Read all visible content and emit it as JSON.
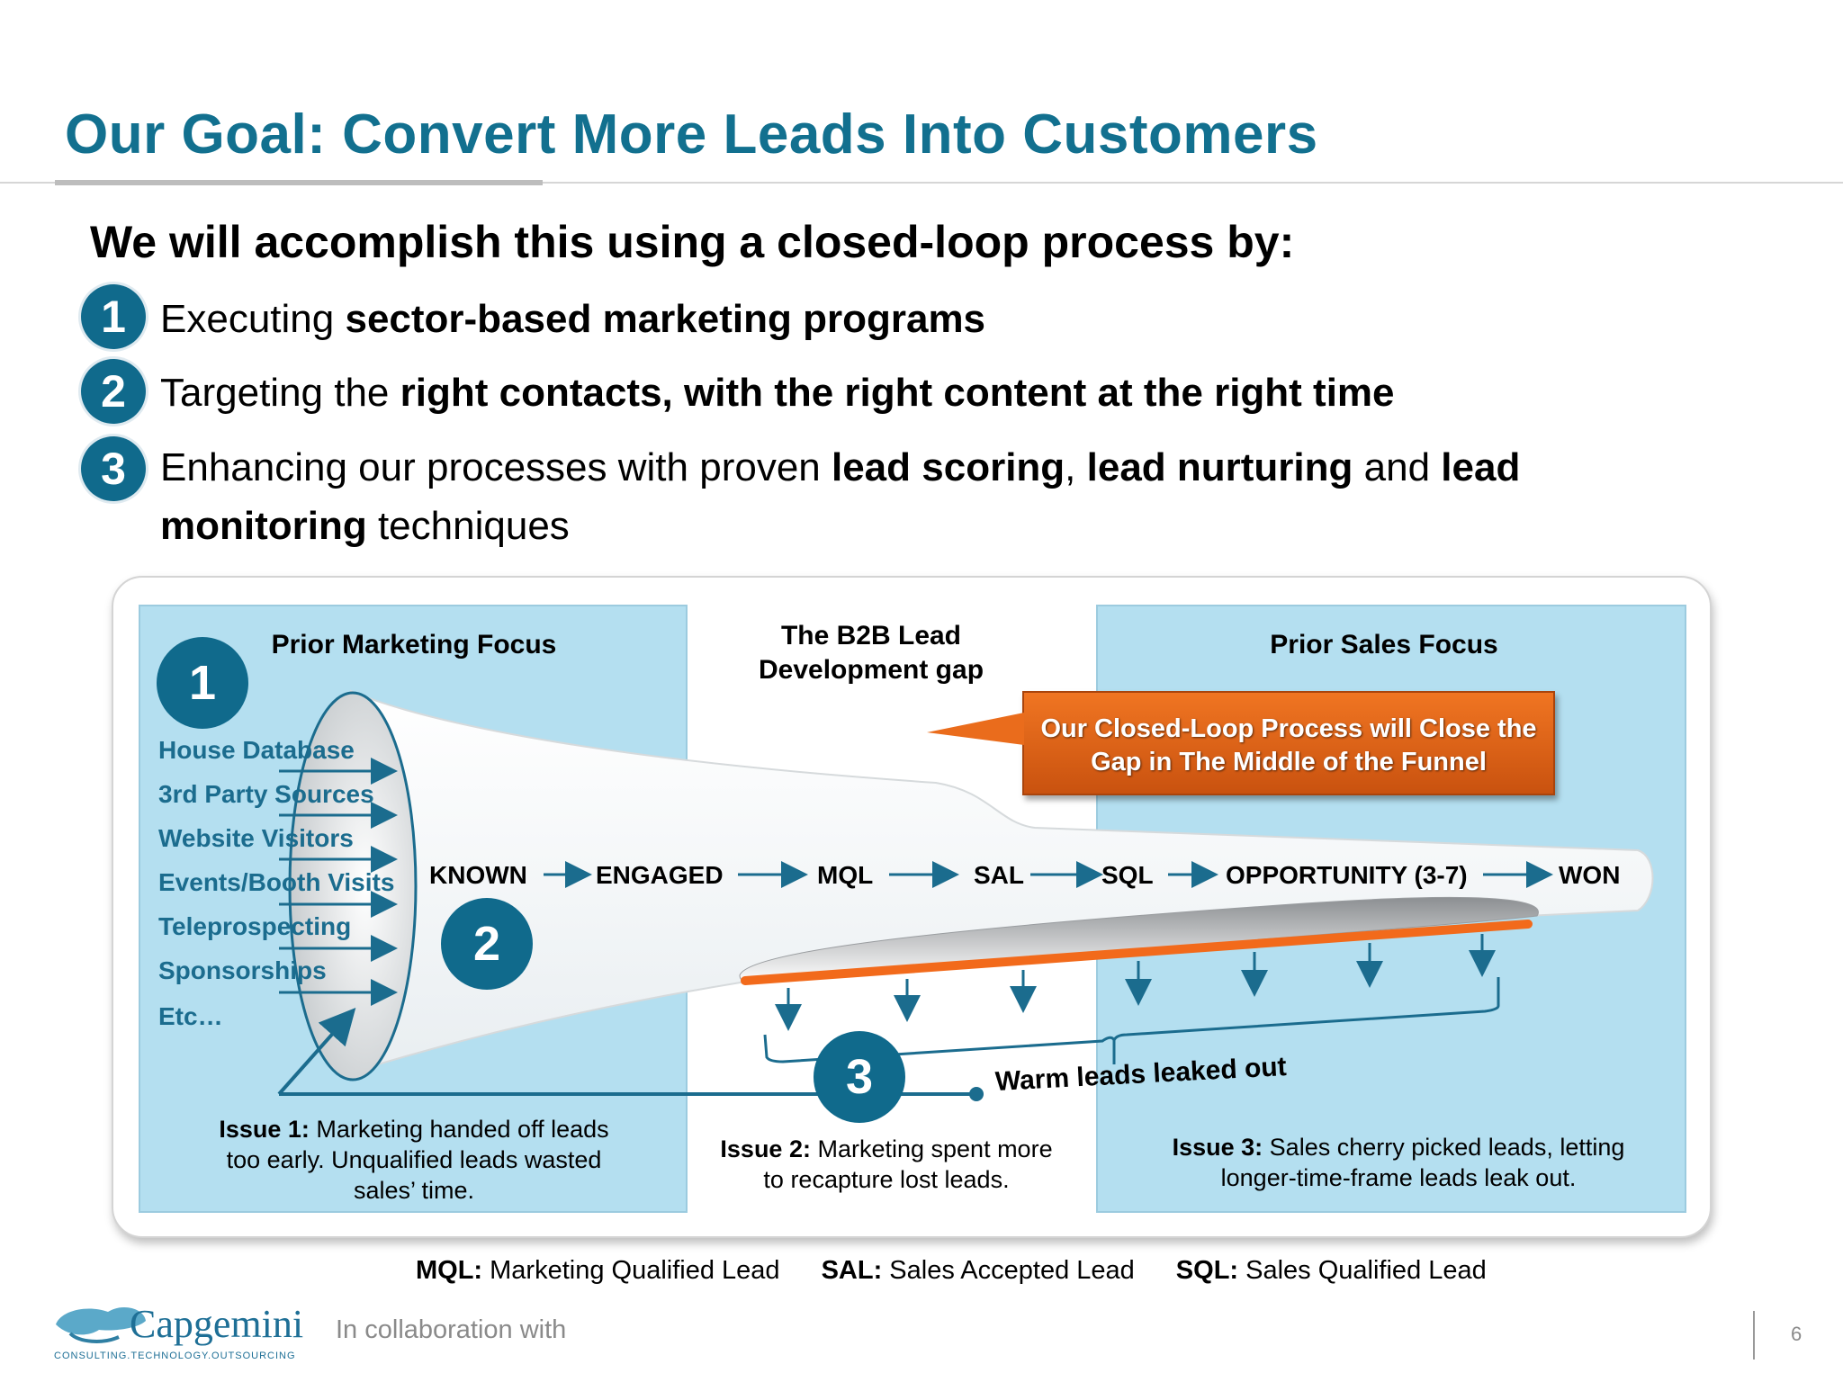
{
  "title": "Our Goal:  Convert More Leads Into Customers",
  "intro": "We will accomplish this using a closed-loop process by:",
  "items": [
    {
      "num": "1",
      "pre": "Executing ",
      "bold": "sector-based marketing programs"
    },
    {
      "num": "2",
      "pre": "Targeting the ",
      "bold": "right contacts, with the right content at the right time"
    },
    {
      "num": "3",
      "line1_pre": "Enhancing our processes with proven ",
      "b1": "lead scoring",
      "c1": ", ",
      "b2": "lead nurturing",
      "mid": " and ",
      "b3": "lead",
      "line2_b": "monitoring",
      "line2_post": " techniques"
    }
  ],
  "diagram": {
    "left_panel_title": "Prior Marketing Focus",
    "center_title": "The B2B Lead Development gap",
    "right_panel_title": "Prior Sales Focus",
    "callout": "Our Closed-Loop Process will Close the Gap  in The Middle of the Funnel",
    "badges": [
      "1",
      "2",
      "3"
    ],
    "sources": [
      "House Database",
      "3rd Party Sources",
      "Website Visitors",
      "Events/Booth Visits",
      "Teleprospecting",
      "Sponsorships",
      "Etc…"
    ],
    "stages": [
      "KNOWN",
      "ENGAGED",
      "MQL",
      "SAL",
      "SQL",
      "OPPORTUNITY (3-7)",
      "WON"
    ],
    "warm_leads": "Warm leads leaked out",
    "issues": [
      {
        "label": "Issue 1:",
        "text": " Marketing handed off leads too early. Unqualified leads wasted sales’ time."
      },
      {
        "label": "Issue 2:",
        "text": " Marketing spent more to recapture lost leads."
      },
      {
        "label": "Issue 3:",
        "text": " Sales cherry picked leads, letting longer-time-frame leads leak out."
      }
    ],
    "colors": {
      "teal": "#106a8c",
      "panel": "#b4dff0",
      "orange": "#f07522"
    }
  },
  "legend": [
    {
      "term": "MQL:",
      "def": " Marketing Qualified Lead"
    },
    {
      "term": "SAL:",
      "def": " Sales Accepted Lead"
    },
    {
      "term": "SQL:",
      "def": " Sales Qualified Lead"
    }
  ],
  "footer": {
    "logo_text": "Capgemini",
    "logo_tagline": "CONSULTING.TECHNOLOGY.OUTSOURCING",
    "collab": "In collaboration with",
    "page": "6"
  }
}
